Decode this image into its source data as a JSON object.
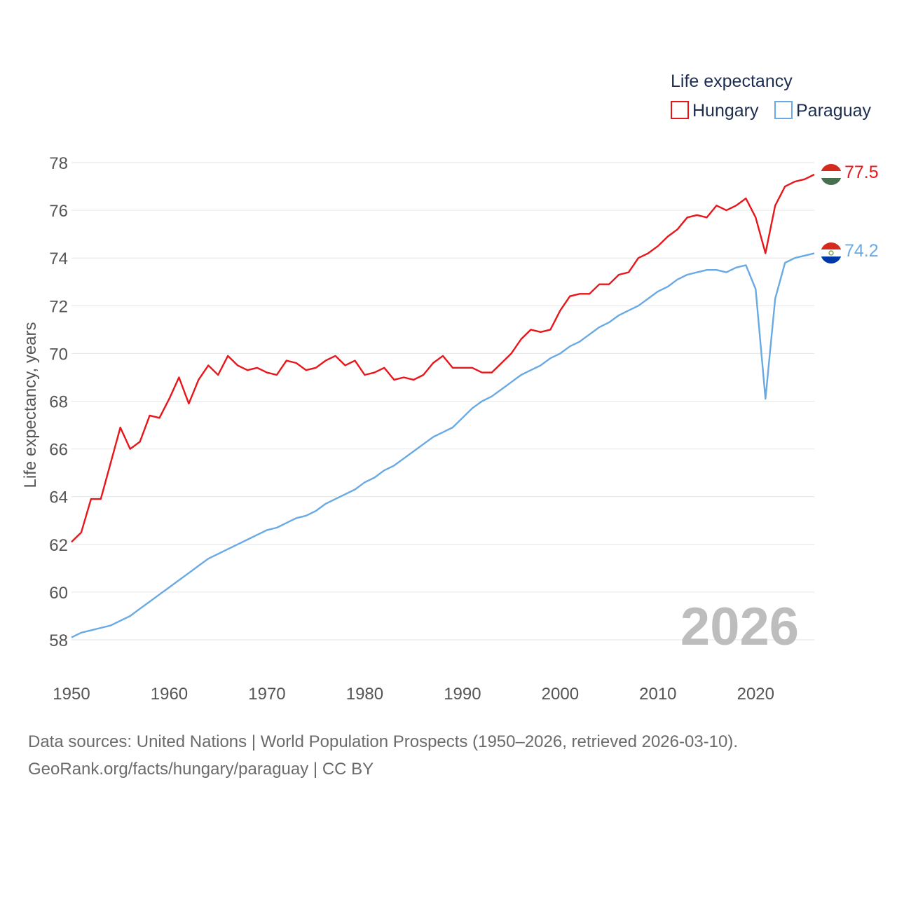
{
  "chart_data": {
    "type": "line",
    "title": "Life expectancy",
    "ylabel": "Life expectancy, years",
    "xlabel": "",
    "xlim": [
      1950,
      2026
    ],
    "ylim": [
      56.5,
      78.4
    ],
    "x_ticks": [
      1950,
      1960,
      1970,
      1980,
      1990,
      2000,
      2010,
      2020
    ],
    "y_ticks": [
      58,
      60,
      62,
      64,
      66,
      68,
      70,
      72,
      74,
      76,
      78
    ],
    "legend_position": "top-right",
    "year_label": "2026",
    "x": [
      1950,
      1951,
      1952,
      1953,
      1954,
      1955,
      1956,
      1957,
      1958,
      1959,
      1960,
      1961,
      1962,
      1963,
      1964,
      1965,
      1966,
      1967,
      1968,
      1969,
      1970,
      1971,
      1972,
      1973,
      1974,
      1975,
      1976,
      1977,
      1978,
      1979,
      1980,
      1981,
      1982,
      1983,
      1984,
      1985,
      1986,
      1987,
      1988,
      1989,
      1990,
      1991,
      1992,
      1993,
      1994,
      1995,
      1996,
      1997,
      1998,
      1999,
      2000,
      2001,
      2002,
      2003,
      2004,
      2005,
      2006,
      2007,
      2008,
      2009,
      2010,
      2011,
      2012,
      2013,
      2014,
      2015,
      2016,
      2017,
      2018,
      2019,
      2020,
      2021,
      2022,
      2023,
      2024,
      2025,
      2026
    ],
    "series": [
      {
        "name": "Hungary",
        "color": "#e8161b",
        "end_label": "77.5",
        "flag": "hungary-flag-icon",
        "values": [
          62.1,
          62.5,
          63.9,
          63.9,
          65.4,
          66.9,
          66.0,
          66.3,
          67.4,
          67.3,
          68.1,
          69.0,
          67.9,
          68.9,
          69.5,
          69.1,
          69.9,
          69.5,
          69.3,
          69.4,
          69.2,
          69.1,
          69.7,
          69.6,
          69.3,
          69.4,
          69.7,
          69.9,
          69.5,
          69.7,
          69.1,
          69.2,
          69.4,
          68.9,
          69.0,
          68.9,
          69.1,
          69.6,
          69.9,
          69.4,
          69.4,
          69.4,
          69.2,
          69.2,
          69.6,
          70.0,
          70.6,
          71.0,
          70.9,
          71.0,
          71.8,
          72.4,
          72.5,
          72.5,
          72.9,
          72.9,
          73.3,
          73.4,
          74.0,
          74.2,
          74.5,
          74.9,
          75.2,
          75.7,
          75.8,
          75.7,
          76.2,
          76.0,
          76.2,
          76.5,
          75.7,
          74.2,
          76.2,
          77.0,
          77.2,
          77.3,
          77.5
        ]
      },
      {
        "name": "Paraguay",
        "color": "#6aaae4",
        "end_label": "74.2",
        "flag": "paraguay-flag-icon",
        "values": [
          58.1,
          58.3,
          58.4,
          58.5,
          58.6,
          58.8,
          59.0,
          59.3,
          59.6,
          59.9,
          60.2,
          60.5,
          60.8,
          61.1,
          61.4,
          61.6,
          61.8,
          62.0,
          62.2,
          62.4,
          62.6,
          62.7,
          62.9,
          63.1,
          63.2,
          63.4,
          63.7,
          63.9,
          64.1,
          64.3,
          64.6,
          64.8,
          65.1,
          65.3,
          65.6,
          65.9,
          66.2,
          66.5,
          66.7,
          66.9,
          67.3,
          67.7,
          68.0,
          68.2,
          68.5,
          68.8,
          69.1,
          69.3,
          69.5,
          69.8,
          70.0,
          70.3,
          70.5,
          70.8,
          71.1,
          71.3,
          71.6,
          71.8,
          72.0,
          72.3,
          72.6,
          72.8,
          73.1,
          73.3,
          73.4,
          73.5,
          73.5,
          73.4,
          73.6,
          73.7,
          72.7,
          68.1,
          72.3,
          73.8,
          74.0,
          74.1,
          74.2
        ]
      }
    ]
  },
  "footer": {
    "source": "Data sources: United Nations | World Population Prospects (1950–2026, retrieved 2026-03-10).",
    "credit": "GeoRank.org/facts/hungary/paraguay | CC BY"
  }
}
